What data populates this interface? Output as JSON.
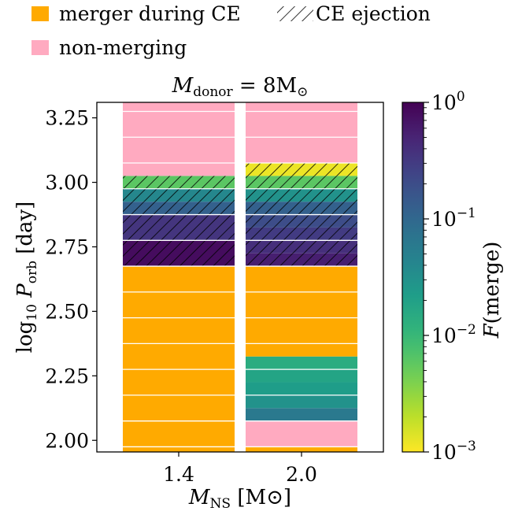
{
  "chart_data": {
    "type": "bar",
    "title": {
      "pre": "M",
      "sub": "donor",
      "post": " = 8M",
      "sym": "⊙"
    },
    "xlabel": {
      "pre": "M",
      "sub": "NS",
      "post": " [M",
      "sym": "⊙",
      "end": "]"
    },
    "ylabel": {
      "pre": "log",
      "sub1": "10",
      "mid": " P",
      "sub2": "orb",
      "post": " [day]"
    },
    "categories": [
      "1.4",
      "2.0"
    ],
    "ylim": [
      1.955,
      3.31
    ],
    "yticks": [
      "2.00",
      "2.25",
      "2.50",
      "2.75",
      "3.00",
      "3.25"
    ],
    "bin_edges": [
      1.975,
      2.075,
      2.175,
      2.275,
      2.375,
      2.475,
      2.575,
      2.675,
      2.775,
      2.875,
      2.975,
      3.075,
      3.175,
      3.275,
      3.375
    ],
    "columns": [
      {
        "name": "1.4",
        "bins": [
          {
            "y": [
              1.955,
              2.675
            ],
            "kind": "merger"
          },
          {
            "y": [
              2.675,
              2.775
            ],
            "kind": "ce",
            "f": 0.8
          },
          {
            "y": [
              2.775,
              2.875
            ],
            "kind": "ce",
            "f": 0.35
          },
          {
            "y": [
              2.875,
              2.925
            ],
            "kind": "ce",
            "f": 0.12
          },
          {
            "y": [
              2.925,
              2.975
            ],
            "kind": "ce",
            "f": 0.04
          },
          {
            "y": [
              2.975,
              3.025
            ],
            "kind": "ce",
            "f": 0.006
          },
          {
            "y": [
              3.025,
              3.31
            ],
            "kind": "nonmerging"
          }
        ]
      },
      {
        "name": "2.0",
        "bins": [
          {
            "y": [
              1.955,
              1.975
            ],
            "kind": "merger"
          },
          {
            "y": [
              1.975,
              2.075
            ],
            "kind": "nonmerging"
          },
          {
            "y": [
              2.075,
              2.125
            ],
            "kind": "merger_f",
            "f": 0.06
          },
          {
            "y": [
              2.125,
              2.175
            ],
            "kind": "merger_f",
            "f": 0.03
          },
          {
            "y": [
              2.175,
              2.225
            ],
            "kind": "merger_f",
            "f": 0.022
          },
          {
            "y": [
              2.225,
              2.275
            ],
            "kind": "merger_f",
            "f": 0.018
          },
          {
            "y": [
              2.275,
              2.325
            ],
            "kind": "merger_f",
            "f": 0.014
          },
          {
            "y": [
              2.325,
              2.675
            ],
            "kind": "merger"
          },
          {
            "y": [
              2.675,
              2.725
            ],
            "kind": "ce",
            "f": 0.55
          },
          {
            "y": [
              2.725,
              2.775
            ],
            "kind": "ce",
            "f": 0.4
          },
          {
            "y": [
              2.775,
              2.825
            ],
            "kind": "ce",
            "f": 0.3
          },
          {
            "y": [
              2.825,
              2.875
            ],
            "kind": "ce",
            "f": 0.2
          },
          {
            "y": [
              2.875,
              2.925
            ],
            "kind": "ce",
            "f": 0.12
          },
          {
            "y": [
              2.925,
              2.975
            ],
            "kind": "ce",
            "f": 0.03
          },
          {
            "y": [
              2.975,
              3.025
            ],
            "kind": "ce",
            "f": 0.006
          },
          {
            "y": [
              3.025,
              3.075
            ],
            "kind": "ce",
            "f": 0.0012
          },
          {
            "y": [
              3.075,
              3.31
            ],
            "kind": "nonmerging"
          }
        ]
      }
    ],
    "colorbar": {
      "label": {
        "pre": "F",
        "post": "(merge)"
      },
      "scale": "log",
      "range": [
        0.001,
        1
      ],
      "ticks": [
        {
          "base": "10",
          "exp": "0",
          "v": 1
        },
        {
          "base": "10",
          "exp": "−1",
          "v": 0.1
        },
        {
          "base": "10",
          "exp": "−2",
          "v": 0.01
        },
        {
          "base": "10",
          "exp": "−3",
          "v": 0.001
        }
      ],
      "colormap": "viridis_r"
    },
    "legend": {
      "placement": "top-left",
      "items": [
        {
          "label": "merger during CE",
          "type": "swatch",
          "color": "#FFAA00"
        },
        {
          "label": "CE ejection",
          "type": "hatch"
        },
        {
          "label": "non-merging",
          "type": "swatch",
          "color": "#FFAAC0"
        }
      ]
    },
    "colors": {
      "merger": "#FFAA00",
      "nonmerging": "#FFAAC0"
    }
  }
}
